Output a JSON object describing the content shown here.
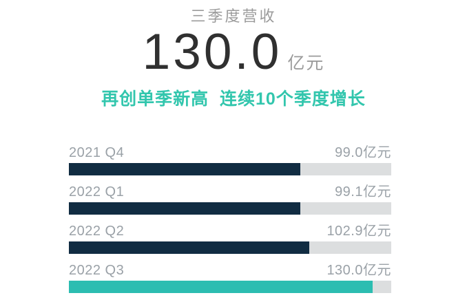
{
  "header": {
    "title": "三季度营收",
    "big_value": "130.0",
    "big_unit": "亿元",
    "subtitle": "再创单季新高  连续10个季度增长"
  },
  "chart_data": {
    "type": "bar",
    "orientation": "horizontal",
    "title": "三季度营收",
    "categories": [
      "2021 Q4",
      "2022 Q1",
      "2022 Q2",
      "2022 Q3"
    ],
    "values": [
      99.0,
      99.1,
      102.9,
      130.0
    ],
    "value_labels": [
      "99.0亿元",
      "99.1亿元",
      "102.9亿元",
      "130.0亿元"
    ],
    "unit": "亿元",
    "xlim": [
      0,
      138
    ],
    "highlight_index": 3,
    "grid": "off",
    "legend": "none"
  },
  "colors": {
    "bar_navy": "#112c42",
    "bar_teal": "#2cbdb1",
    "track_gray": "#dcdedf",
    "accent_teal": "#32c6ad",
    "label_gray": "#9aa1a7",
    "title_gray": "#9b9b9b",
    "number_dark": "#303030"
  }
}
